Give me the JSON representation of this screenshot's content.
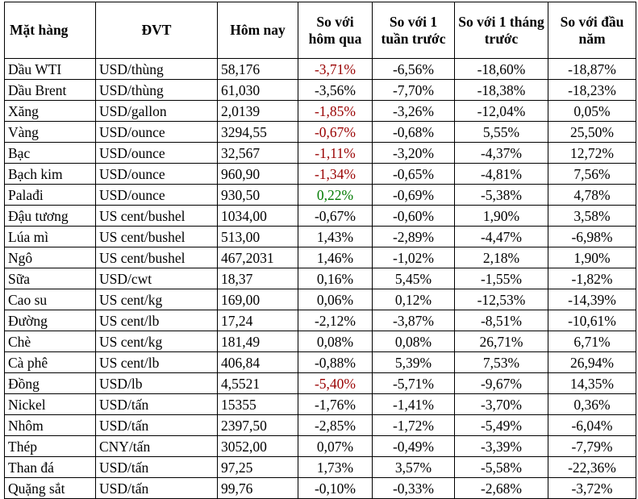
{
  "headers": {
    "item": "Mặt hàng",
    "unit": "ĐVT",
    "today": "Hôm nay",
    "vs_yesterday": "So với hôm qua",
    "vs_week": "So với 1 tuần trước",
    "vs_month": "So với 1 tháng trước",
    "vs_ytd": "So với đầu năm"
  },
  "colors": {
    "red": "#990000",
    "green": "#007a00",
    "text": "#000000"
  },
  "rows": [
    {
      "name": "Dầu WTI",
      "unit": "USD/thùng",
      "today": "58,176",
      "d1": "-3,71%",
      "w1": "-6,56%",
      "m1": "-18,60%",
      "ytd": "-18,87%",
      "d1_tone": "red"
    },
    {
      "name": "Dầu Brent",
      "unit": "USD/thùng",
      "today": "61,030",
      "d1": "-3,56%",
      "w1": "-7,70%",
      "m1": "-18,38%",
      "ytd": "-18,23%",
      "d1_tone": "black"
    },
    {
      "name": "Xăng",
      "unit": "USD/gallon",
      "today": "2,0139",
      "d1": "-1,85%",
      "w1": "-3,26%",
      "m1": "-12,04%",
      "ytd": "0,05%",
      "d1_tone": "red"
    },
    {
      "name": "Vàng",
      "unit": "USD/ounce",
      "today": "3294,55",
      "d1": "-0,67%",
      "w1": "-0,68%",
      "m1": "5,55%",
      "ytd": "25,50%",
      "d1_tone": "red"
    },
    {
      "name": "Bạc",
      "unit": "USD/ounce",
      "today": "32,567",
      "d1": "-1,11%",
      "w1": "-3,20%",
      "m1": "-4,37%",
      "ytd": "12,72%",
      "d1_tone": "red"
    },
    {
      "name": "Bạch kim",
      "unit": "USD/ounce",
      "today": "960,90",
      "d1": "-1,34%",
      "w1": "-0,65%",
      "m1": "-4,81%",
      "ytd": "7,56%",
      "d1_tone": "red"
    },
    {
      "name": "Palađi",
      "unit": "USD/ounce",
      "today": "930,50",
      "d1": "0,22%",
      "w1": "-0,69%",
      "m1": "-5,38%",
      "ytd": "4,78%",
      "d1_tone": "green"
    },
    {
      "name": "Đậu tương",
      "unit": "US cent/bushel",
      "today": "1034,00",
      "d1": "-0,67%",
      "w1": "-0,60%",
      "m1": "1,90%",
      "ytd": "3,58%",
      "d1_tone": "black"
    },
    {
      "name": "Lúa mì",
      "unit": "US cent/bushel",
      "today": "513,00",
      "d1": "1,43%",
      "w1": "-2,89%",
      "m1": "-4,47%",
      "ytd": "-6,98%",
      "d1_tone": "black"
    },
    {
      "name": "Ngô",
      "unit": "US cent/bushel",
      "today": "467,2031",
      "d1": "1,46%",
      "w1": "-1,02%",
      "m1": "2,18%",
      "ytd": "1,90%",
      "d1_tone": "black"
    },
    {
      "name": "Sữa",
      "unit": "USD/cwt",
      "today": "18,37",
      "d1": "0,16%",
      "w1": "5,45%",
      "m1": "-1,55%",
      "ytd": "-1,82%",
      "d1_tone": "black"
    },
    {
      "name": "Cao su",
      "unit": "US cent/kg",
      "today": "169,00",
      "d1": "0,06%",
      "w1": "0,12%",
      "m1": "-12,53%",
      "ytd": "-14,39%",
      "d1_tone": "black"
    },
    {
      "name": "Đường",
      "unit": "US cent/lb",
      "today": "17,24",
      "d1": "-2,12%",
      "w1": "-3,87%",
      "m1": "-8,51%",
      "ytd": "-10,61%",
      "d1_tone": "black"
    },
    {
      "name": "Chè",
      "unit": "US cent/kg",
      "today": "181,49",
      "d1": "0,08%",
      "w1": "0,08%",
      "m1": "26,71%",
      "ytd": "6,71%",
      "d1_tone": "black"
    },
    {
      "name": "Cà phê",
      "unit": "US cent/lb",
      "today": "406,84",
      "d1": "-0,88%",
      "w1": "5,39%",
      "m1": "7,53%",
      "ytd": "26,94%",
      "d1_tone": "black"
    },
    {
      "name": "Đồng",
      "unit": "USD/lb",
      "today": "4,5521",
      "d1": "-5,40%",
      "w1": "-5,71%",
      "m1": "-9,67%",
      "ytd": "14,35%",
      "d1_tone": "red"
    },
    {
      "name": "Nickel",
      "unit": "USD/tấn",
      "today": "15355",
      "d1": "-1,76%",
      "w1": "-1,41%",
      "m1": "-3,70%",
      "ytd": "0,36%",
      "d1_tone": "black"
    },
    {
      "name": "Nhôm",
      "unit": "USD/tấn",
      "today": "2397,50",
      "d1": "-2,85%",
      "w1": "-1,72%",
      "m1": "-5,49%",
      "ytd": "-6,04%",
      "d1_tone": "black"
    },
    {
      "name": "Thép",
      "unit": "CNY/tấn",
      "today": "3052,00",
      "d1": "0,07%",
      "w1": "-0,49%",
      "m1": "-3,39%",
      "ytd": "-7,79%",
      "d1_tone": "black"
    },
    {
      "name": "Than đá",
      "unit": "USD/tấn",
      "today": "97,25",
      "d1": "1,73%",
      "w1": "3,57%",
      "m1": "-5,58%",
      "ytd": "-22,36%",
      "d1_tone": "black"
    },
    {
      "name": "Quặng sắt",
      "unit": "USD/tấn",
      "today": "99,76",
      "d1": "-0,10%",
      "w1": "-0,33%",
      "m1": "-2,68%",
      "ytd": "-3,72%",
      "d1_tone": "black"
    }
  ]
}
